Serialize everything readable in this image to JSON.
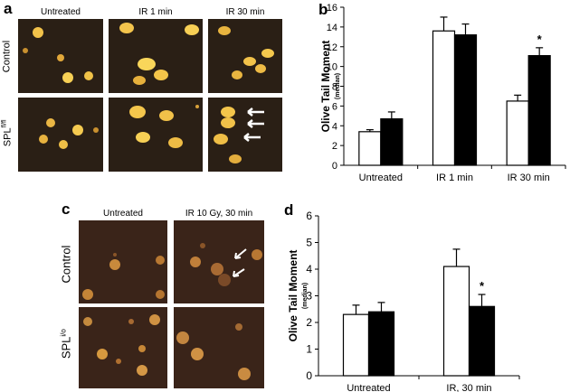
{
  "panel_a": {
    "letter": "a",
    "columns": [
      "Untreated",
      "IR 1 min",
      "IR 30 min"
    ],
    "rows": [
      {
        "label_main": "Control",
        "label_sup": ""
      },
      {
        "label_main": "SPL",
        "label_sup": "fl/fl"
      }
    ]
  },
  "panel_c": {
    "letter": "c",
    "columns": [
      "Untreated",
      "IR 10 Gy, 30 min"
    ],
    "rows": [
      {
        "label_main": "Control",
        "label_sup": ""
      },
      {
        "label_main": "SPL",
        "label_sup": "i/o"
      }
    ]
  },
  "chart_data": [
    {
      "panel": "b",
      "type": "bar",
      "title": "",
      "xlabel": "",
      "ylabel": "Olive Tail Moment",
      "ylabel_sub": "(median)",
      "categories": [
        "Untreated",
        "IR 1 min",
        "IR 30 min"
      ],
      "ylim": [
        0,
        16
      ],
      "yticks": [
        0,
        2,
        4,
        6,
        8,
        10,
        12,
        14,
        16
      ],
      "grid": false,
      "legend": "none",
      "series": [
        {
          "fill": "#ffffff",
          "values": [
            3.4,
            13.6,
            6.5
          ],
          "errors": [
            0.2,
            1.4,
            0.6
          ]
        },
        {
          "fill": "#000000",
          "values": [
            4.7,
            13.2,
            11.1
          ],
          "errors": [
            0.7,
            1.1,
            0.8
          ]
        }
      ],
      "annotations": [
        {
          "category": 2,
          "series": 1,
          "text": "*"
        }
      ]
    },
    {
      "panel": "d",
      "type": "bar",
      "title": "",
      "xlabel": "",
      "ylabel": "Olive Tail Moment",
      "ylabel_sub": "(median)",
      "categories": [
        "Untreated",
        "IR, 30 min"
      ],
      "ylim": [
        0,
        6
      ],
      "yticks": [
        0,
        1,
        2,
        3,
        4,
        5,
        6
      ],
      "grid": false,
      "legend": "none",
      "series": [
        {
          "fill": "#ffffff",
          "values": [
            2.3,
            4.1
          ],
          "errors": [
            0.35,
            0.65
          ]
        },
        {
          "fill": "#000000",
          "values": [
            2.4,
            2.6
          ],
          "errors": [
            0.35,
            0.45
          ]
        }
      ],
      "annotations": [
        {
          "category": 1,
          "series": 1,
          "text": "*"
        }
      ]
    }
  ]
}
